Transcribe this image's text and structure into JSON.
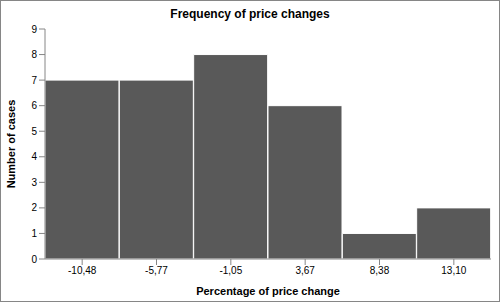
{
  "chart_data": {
    "type": "bar",
    "title": "Frequency of price changes",
    "x_label": "Percentage of price change",
    "y_label": "Number of cases",
    "categories": [
      "-10,48",
      "-5,77",
      "-1,05",
      "3,67",
      "8,38",
      "13,10"
    ],
    "values": [
      7,
      7,
      8,
      6,
      1,
      2
    ],
    "color": "#595959",
    "ylim": [
      0,
      9
    ],
    "yticks": [
      0,
      1,
      2,
      3,
      4,
      5,
      6,
      7,
      8,
      9
    ],
    "grid": false
  }
}
